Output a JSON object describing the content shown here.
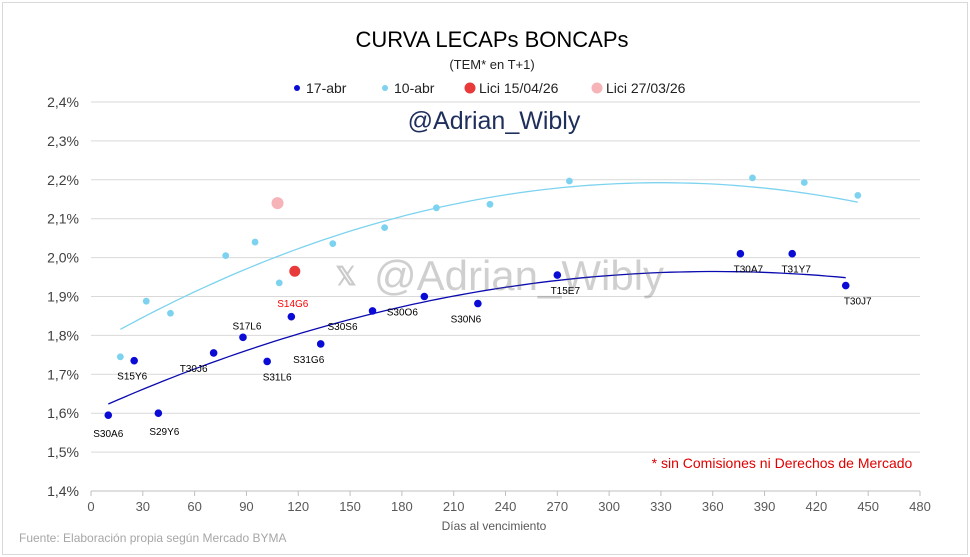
{
  "chart_data": {
    "type": "scatter",
    "title": "CURVA LECAPs BONCAPs",
    "subtitle": "(TEM* en T+1)",
    "watermark_main": "@Adrian_Wibly",
    "watermark_x": "@Adrian_Wibly",
    "xlabel": "Días al vencimiento",
    "ylabel": "",
    "xlim": [
      0,
      480
    ],
    "ylim": [
      1.4,
      2.4
    ],
    "x_ticks": [
      0,
      30,
      60,
      90,
      120,
      150,
      180,
      210,
      240,
      270,
      300,
      330,
      360,
      390,
      420,
      450,
      480
    ],
    "y_ticks": [
      1.4,
      1.5,
      1.6,
      1.7,
      1.8,
      1.9,
      2.0,
      2.1,
      2.2,
      2.3,
      2.4
    ],
    "y_tick_labels": [
      "1,4%",
      "1,5%",
      "1,6%",
      "1,7%",
      "1,8%",
      "1,9%",
      "2,0%",
      "2,1%",
      "2,2%",
      "2,3%",
      "2,4%"
    ],
    "legend": [
      "17-abr",
      "10-abr",
      "Lici 15/04/26",
      "Lici 27/03/26"
    ],
    "legend_position": "top",
    "note": "* sin Comisiones ni Derechos de Mercado",
    "source": "Fuente: Elaboración propia según Mercado BYMA",
    "colors": {
      "s17abr": "#0b0bd6",
      "s10abr": "#7dd3ef",
      "lici1504": "#e83a3a",
      "lici2703": "#f6b3b8",
      "trend17": "#0a0ab0",
      "trend10": "#7dd3ef",
      "title": "#000000",
      "label_red": "#ff0000",
      "note_red": "#e00000",
      "watermark": "#1f2f5c",
      "grey": "#8c8c8c"
    },
    "series": [
      {
        "name": "17-abr",
        "points": [
          {
            "x": 10,
            "y": 1.595,
            "label": "S30A6"
          },
          {
            "x": 25,
            "y": 1.735,
            "label": "S15Y6"
          },
          {
            "x": 39,
            "y": 1.6,
            "label": "S29Y6"
          },
          {
            "x": 71,
            "y": 1.755,
            "label": "T30J6"
          },
          {
            "x": 88,
            "y": 1.795,
            "label": "S17L6"
          },
          {
            "x": 102,
            "y": 1.733,
            "label": "S31L6"
          },
          {
            "x": 116,
            "y": 1.848,
            "label": ""
          },
          {
            "x": 133,
            "y": 1.778,
            "label": "S31G6"
          },
          {
            "x": 163,
            "y": 1.863,
            "label": "S30S6"
          },
          {
            "x": 193,
            "y": 1.9,
            "label": "S30O6"
          },
          {
            "x": 224,
            "y": 1.882,
            "label": "S30N6"
          },
          {
            "x": 270,
            "y": 1.955,
            "label": "T15E7"
          },
          {
            "x": 376,
            "y": 2.01,
            "label": "T30A7"
          },
          {
            "x": 406,
            "y": 2.01,
            "label": "T31Y7"
          },
          {
            "x": 437,
            "y": 1.928,
            "label": "T30J7"
          }
        ]
      },
      {
        "name": "10-abr",
        "points": [
          {
            "x": 17,
            "y": 1.745
          },
          {
            "x": 32,
            "y": 1.888
          },
          {
            "x": 46,
            "y": 1.857
          },
          {
            "x": 78,
            "y": 2.005
          },
          {
            "x": 95,
            "y": 2.04
          },
          {
            "x": 109,
            "y": 1.935
          },
          {
            "x": 140,
            "y": 2.036
          },
          {
            "x": 170,
            "y": 2.077
          },
          {
            "x": 200,
            "y": 2.128
          },
          {
            "x": 231,
            "y": 2.137
          },
          {
            "x": 277,
            "y": 2.197
          },
          {
            "x": 383,
            "y": 2.205
          },
          {
            "x": 413,
            "y": 2.193
          },
          {
            "x": 444,
            "y": 2.16
          }
        ]
      },
      {
        "name": "Lici 15/04/26",
        "points": [
          {
            "x": 118,
            "y": 1.965,
            "label": "S14G6"
          }
        ]
      },
      {
        "name": "Lici 27/03/26",
        "points": [
          {
            "x": 108,
            "y": 2.14
          }
        ]
      }
    ],
    "trendlines": [
      {
        "series": "17-abr",
        "x_from": 10,
        "x_to": 437,
        "coef": [
          1.604,
          0.0019944,
          -2.7604e-06
        ]
      },
      {
        "series": "10-abr",
        "x_from": 17,
        "x_to": 444,
        "coef": [
          1.7736,
          0.0025394,
          -3.8484e-06
        ]
      }
    ]
  }
}
